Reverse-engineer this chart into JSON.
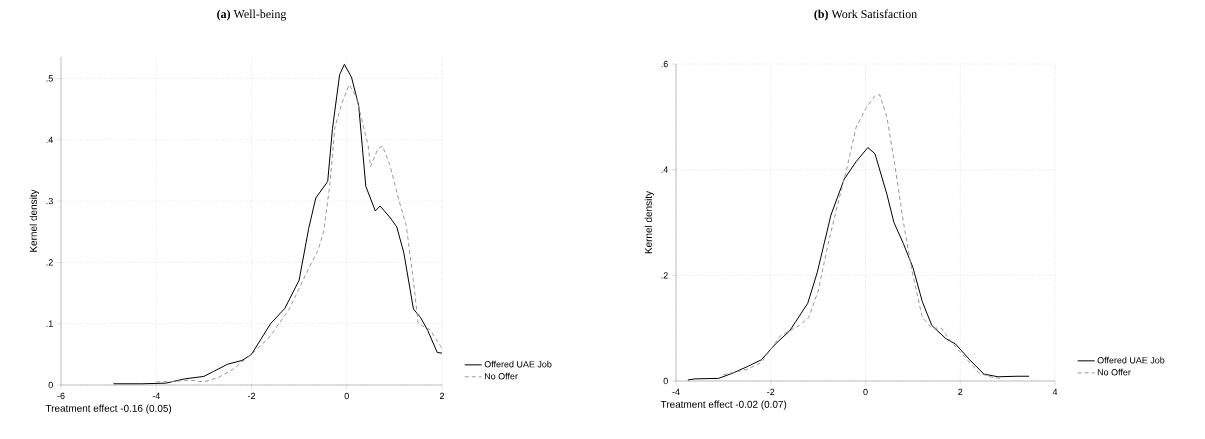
{
  "chart_data": [
    {
      "type": "line",
      "title": "**(a)** Well-being",
      "xlabel": "Treatment effect -0.16 (0.05)",
      "ylabel": "Kernel density",
      "xlim": [
        -6,
        2
      ],
      "ylim": [
        0,
        0.535
      ],
      "xticks": [
        -6,
        -4,
        -2,
        0,
        2
      ],
      "yticks": [
        0,
        {
          "value": 0.1,
          "label": ".1"
        },
        {
          "value": 0.2,
          "label": ".2"
        },
        {
          "value": 0.3,
          "label": ".3"
        },
        {
          "value": 0.4,
          "label": ".4"
        },
        {
          "value": 0.5,
          "label": ".5"
        }
      ],
      "grid": true,
      "legend": "bottom right",
      "series": [
        {
          "name": "Offered UAE Job",
          "color": "#000000",
          "line_style": "solid",
          "x": [
            -4.9,
            -4.3,
            -3.8,
            -3.4,
            -3.0,
            -2.8,
            -2.5,
            -2.2,
            -2.0,
            -1.8,
            -1.6,
            -1.3,
            -1.0,
            -0.8,
            -0.65,
            -0.4,
            -0.3,
            -0.15,
            -0.05,
            0.1,
            0.25,
            0.4,
            0.6,
            0.7,
            0.9,
            1.05,
            1.2,
            1.4,
            1.55,
            1.7,
            1.9,
            2.0
          ],
          "values": [
            0.002,
            0.002,
            0.003,
            0.01,
            0.014,
            0.022,
            0.034,
            0.04,
            0.05,
            0.075,
            0.1,
            0.125,
            0.171,
            0.255,
            0.305,
            0.332,
            0.418,
            0.506,
            0.523,
            0.502,
            0.456,
            0.324,
            0.284,
            0.292,
            0.274,
            0.258,
            0.215,
            0.124,
            0.11,
            0.089,
            0.053,
            0.052
          ]
        },
        {
          "name": "No Offer",
          "color": "#999999",
          "line_style": "dashed",
          "x": [
            -4.0,
            -3.6,
            -3.3,
            -3.0,
            -2.7,
            -2.4,
            -2.0,
            -1.6,
            -1.2,
            -0.8,
            -0.6,
            -0.48,
            -0.35,
            -0.25,
            -0.1,
            0.05,
            0.2,
            0.28,
            0.45,
            0.5,
            0.65,
            0.75,
            0.9,
            1.1,
            1.25,
            1.4,
            1.5,
            1.75,
            2.0
          ],
          "values": [
            0.005,
            0.006,
            0.008,
            0.005,
            0.012,
            0.025,
            0.05,
            0.08,
            0.125,
            0.19,
            0.22,
            0.252,
            0.33,
            0.42,
            0.46,
            0.49,
            0.47,
            0.444,
            0.39,
            0.356,
            0.385,
            0.39,
            0.36,
            0.3,
            0.26,
            0.17,
            0.1,
            0.09,
            0.06
          ]
        }
      ]
    },
    {
      "type": "line",
      "title": "**(b)** Work Satisfaction",
      "xlabel": "Treatment effect -0.02 (0.07)",
      "ylabel": "Kernel density",
      "xlim": [
        -4,
        4
      ],
      "ylim": [
        0,
        0.6
      ],
      "xticks": [
        -4,
        -2,
        0,
        2,
        4
      ],
      "yticks": [
        0,
        {
          "value": 0.2,
          "label": ".2"
        },
        {
          "value": 0.4,
          "label": ".4"
        },
        {
          "value": 0.6,
          "label": ".6"
        }
      ],
      "grid": true,
      "legend": "bottom right",
      "series": [
        {
          "name": "Offered UAE Job",
          "color": "#000000",
          "line_style": "solid",
          "x": [
            -3.75,
            -3.6,
            -3.1,
            -2.8,
            -2.5,
            -2.2,
            -1.9,
            -1.6,
            -1.22,
            -1.02,
            -0.73,
            -0.45,
            -0.2,
            0.05,
            0.2,
            0.45,
            0.6,
            0.8,
            1.0,
            1.2,
            1.4,
            1.7,
            1.9,
            2.2,
            2.5,
            2.8,
            3.2,
            3.45
          ],
          "values": [
            0.002,
            0.004,
            0.005,
            0.015,
            0.027,
            0.04,
            0.07,
            0.095,
            0.147,
            0.205,
            0.314,
            0.382,
            0.415,
            0.442,
            0.43,
            0.354,
            0.3,
            0.26,
            0.215,
            0.15,
            0.105,
            0.08,
            0.07,
            0.04,
            0.013,
            0.008,
            0.009,
            0.009
          ]
        },
        {
          "name": "No Offer",
          "color": "#999999",
          "line_style": "dashed",
          "x": [
            -3.0,
            -2.5,
            -2.2,
            -1.8,
            -1.4,
            -1.2,
            -1.0,
            -0.8,
            -0.6,
            -0.4,
            -0.2,
            0.0,
            0.2,
            0.3,
            0.45,
            0.6,
            0.8,
            1.0,
            1.2,
            1.4,
            1.6,
            1.8,
            2.1,
            2.4,
            2.7,
            2.9
          ],
          "values": [
            0.012,
            0.022,
            0.035,
            0.085,
            0.105,
            0.12,
            0.17,
            0.255,
            0.33,
            0.4,
            0.48,
            0.515,
            0.54,
            0.542,
            0.5,
            0.42,
            0.3,
            0.2,
            0.12,
            0.1,
            0.1,
            0.075,
            0.045,
            0.015,
            0.006,
            0.005
          ]
        }
      ]
    }
  ]
}
